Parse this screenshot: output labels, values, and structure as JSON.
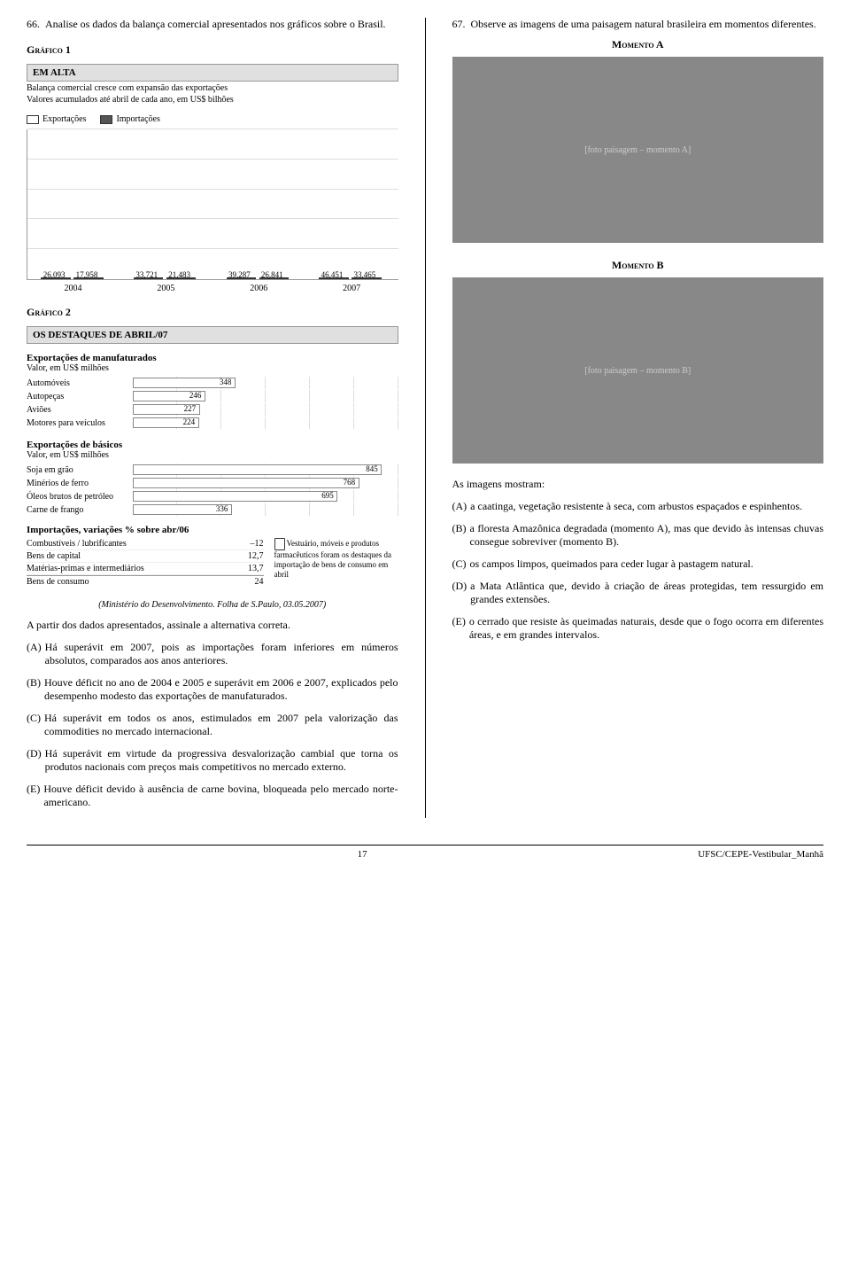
{
  "q66": {
    "num": "66.",
    "text": "Analise os dados da balança comercial apresentados nos gráficos sobre o Brasil.",
    "graf1_label": "Gráfico 1",
    "box_header": "EM ALTA",
    "box_line1": "Balança comercial cresce com expansão das exportações",
    "box_line2": "Valores acumulados até abril de cada ano, em US$ bilhões",
    "legend_exp": "Exportações",
    "legend_imp": "Importações",
    "chart1": {
      "ymax": 50,
      "colors": {
        "exp": "#ffffff",
        "imp": "#555555",
        "grid": "#dddddd"
      },
      "years": [
        "2004",
        "2005",
        "2006",
        "2007"
      ],
      "exp": [
        26.093,
        33.721,
        39.287,
        46.451
      ],
      "imp": [
        17.958,
        21.483,
        26.841,
        33.465
      ],
      "exp_lbl": [
        "26,093",
        "33,721",
        "39,287",
        "46,451"
      ],
      "imp_lbl": [
        "17,958",
        "21,483",
        "26,841",
        "33,465"
      ]
    },
    "graf2_label": "Gráfico 2",
    "box2_header": "OS DESTAQUES DE ABRIL/07",
    "manuf": {
      "title": "Exportações de manufaturados",
      "note": "Valor, em US$ milhões",
      "max": 900,
      "rows": [
        {
          "label": "Automóveis",
          "val": 348,
          "txt": "348"
        },
        {
          "label": "Autopeças",
          "val": 246,
          "txt": "246"
        },
        {
          "label": "Aviões",
          "val": 227,
          "txt": "227"
        },
        {
          "label": "Motores para veículos",
          "val": 224,
          "txt": "224"
        }
      ]
    },
    "basicos": {
      "title": "Exportações de básicos",
      "note": "Valor, em US$ milhões",
      "max": 900,
      "rows": [
        {
          "label": "Soja em grão",
          "val": 845,
          "txt": "845"
        },
        {
          "label": "Minérios de ferro",
          "val": 768,
          "txt": "768"
        },
        {
          "label": "Óleos brutos de petróleo",
          "val": 695,
          "txt": "695"
        },
        {
          "label": "Carne de frango",
          "val": 336,
          "txt": "336"
        }
      ]
    },
    "imp": {
      "title": "Importações, variações % sobre abr/06",
      "rows": [
        {
          "label": "Combustíveis / lubrificantes",
          "val": "–12"
        },
        {
          "label": "Bens de capital",
          "val": "12,7"
        },
        {
          "label": "Matérias-primas e intermediários",
          "val": "13,7"
        },
        {
          "label": "Bens de consumo",
          "val": "24"
        }
      ],
      "note": "Vestuário, móveis e produtos farmacêuticos foram os destaques da importação de bens de consumo em abril"
    },
    "source": "(Ministério do Desenvolvimento. Folha de S.Paulo, 03.05.2007)",
    "lead": "A partir dos dados apresentados, assinale a alternativa correta.",
    "alts": [
      {
        "tag": "(A)",
        "text": "Há superávit em 2007, pois as importações foram inferiores em números absolutos, comparados aos anos anteriores."
      },
      {
        "tag": "(B)",
        "text": "Houve déficit no ano de 2004 e 2005 e superávit em 2006 e 2007, explicados pelo desempenho modesto das exportações de manufaturados."
      },
      {
        "tag": "(C)",
        "text": "Há superávit em todos os anos, estimulados em 2007 pela valorização das commodities no mercado internacional."
      },
      {
        "tag": "(D)",
        "text": "Há superávit em virtude da progressiva desvalorização cambial que torna os produtos nacionais com preços mais competitivos no mercado externo."
      },
      {
        "tag": "(E)",
        "text": "Houve déficit devido à ausência de carne bovina, bloqueada pelo mercado norte-americano."
      }
    ]
  },
  "q67": {
    "num": "67.",
    "text": "Observe as imagens de uma paisagem natural brasileira em momentos diferentes.",
    "momA": "Momento A",
    "momB": "Momento B",
    "lead": "As imagens mostram:",
    "alts": [
      {
        "tag": "(A)",
        "text": "a caatinga, vegetação resistente à seca, com arbustos espaçados e espinhentos."
      },
      {
        "tag": "(B)",
        "text": "a floresta Amazônica degradada (momento A), mas que devido às intensas chuvas consegue sobreviver (momento B)."
      },
      {
        "tag": "(C)",
        "text": "os campos limpos, queimados para ceder lugar à pastagem natural."
      },
      {
        "tag": "(D)",
        "text": "a Mata Atlântica que, devido à criação de áreas protegidas, tem ressurgido em grandes extensões."
      },
      {
        "tag": "(E)",
        "text": "o cerrado que resiste às queimadas naturais, desde que o fogo ocorra em diferentes áreas, e em grandes intervalos."
      }
    ]
  },
  "footer": {
    "page": "17",
    "doc": "UFSC/CEPE-Vestibular_Manhã"
  }
}
